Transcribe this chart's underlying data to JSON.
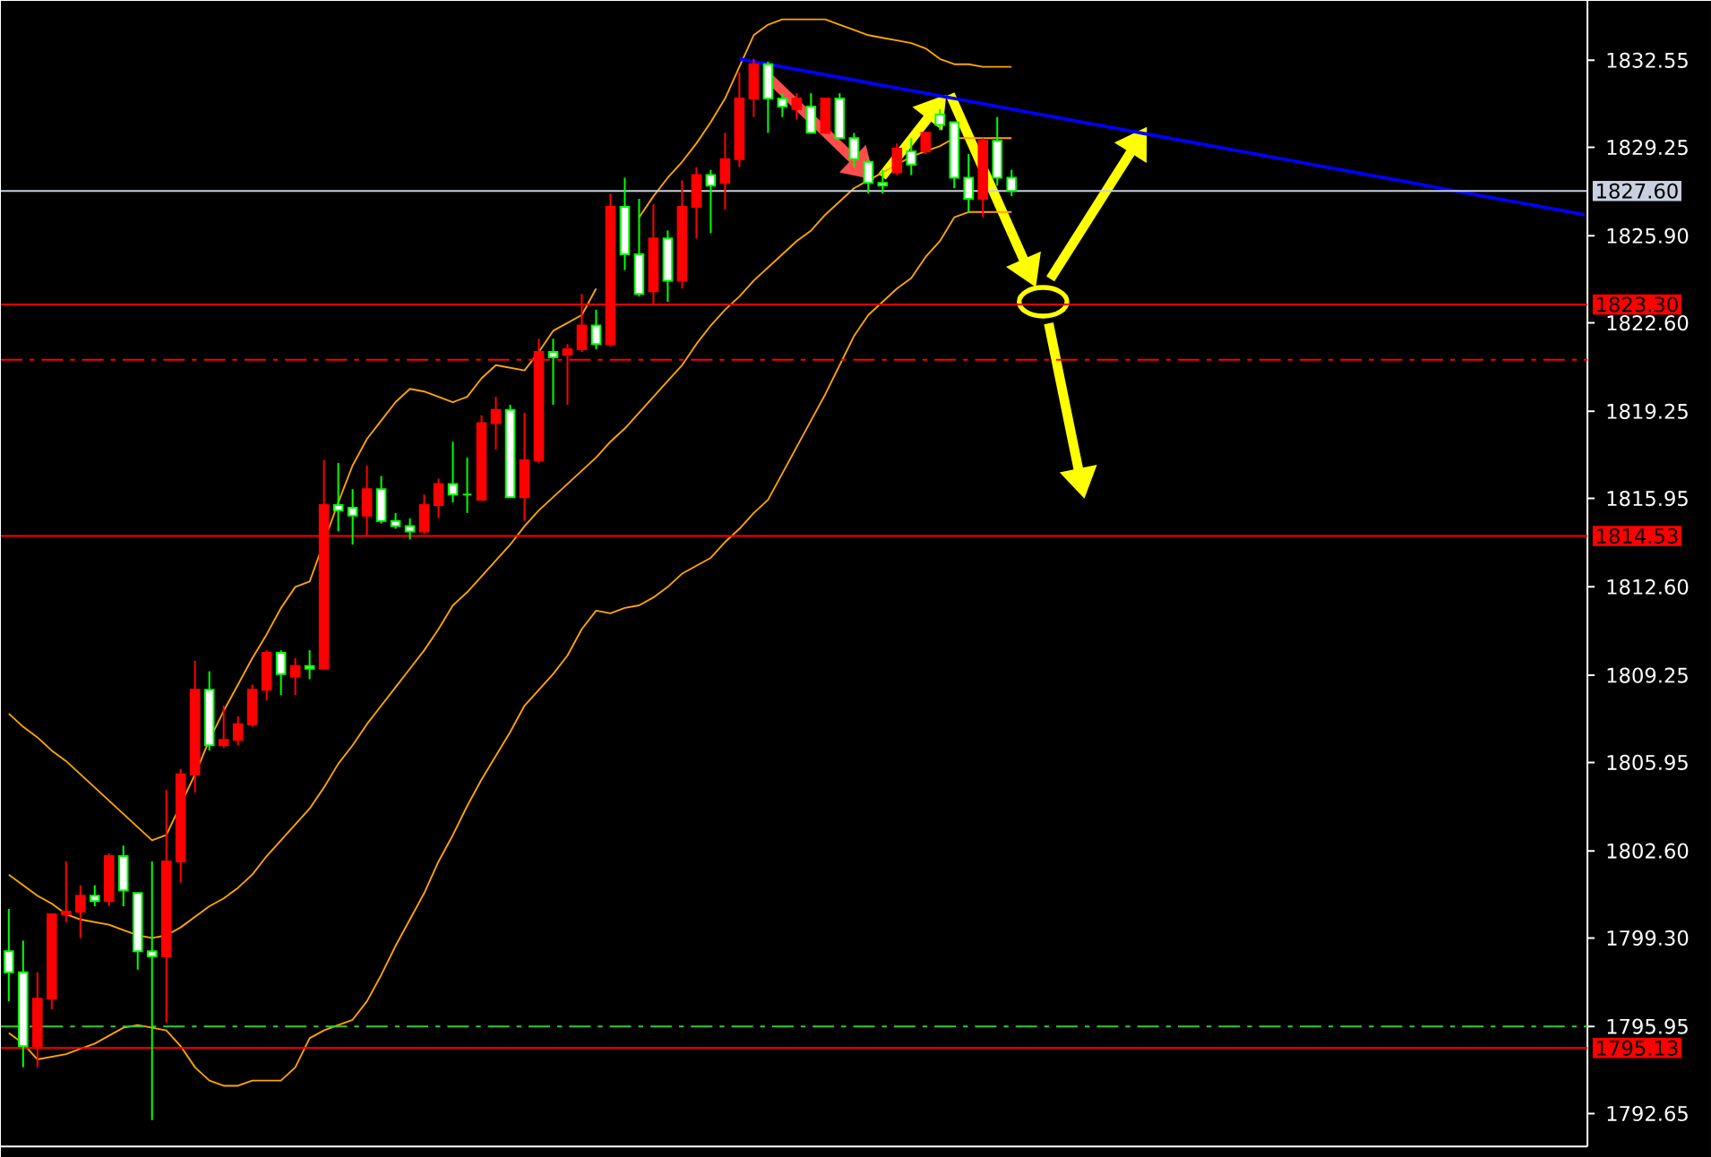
{
  "chart_data": {
    "type": "candlestick",
    "categories": [
      null,
      null,
      null,
      null,
      null,
      null,
      null,
      null,
      null,
      null,
      null,
      null,
      null,
      null,
      null,
      null,
      null,
      null,
      null,
      null,
      null,
      null,
      null,
      null,
      null,
      null,
      null,
      null,
      null,
      null,
      null,
      null,
      null,
      null,
      null,
      null,
      null,
      null,
      null,
      null,
      null,
      null,
      null,
      null,
      null,
      null,
      null,
      null,
      null,
      null,
      null,
      null,
      null,
      null,
      null,
      null,
      null,
      null,
      null,
      null,
      null,
      null,
      null,
      null,
      null,
      null,
      null,
      null,
      null,
      null,
      null,
      null,
      null,
      null,
      null,
      null,
      null,
      null,
      null,
      null,
      null,
      null,
      null,
      null,
      null,
      null,
      null,
      null,
      null,
      null,
      null,
      null,
      null,
      null,
      null,
      null,
      null,
      null,
      null,
      null,
      null,
      null,
      null,
      null,
      null,
      null,
      null,
      null,
      null,
      null,
      null
    ],
    "ohlc": [
      [
        1798.0,
        1800.4,
        1796.9,
        1798.8
      ],
      [
        1795.2,
        1799.2,
        1794.4,
        1798.0
      ],
      [
        1797.0,
        1798.0,
        1794.4,
        1795.2
      ],
      [
        1800.2,
        1800.2,
        1796.6,
        1797.0
      ],
      [
        1800.3,
        1802.2,
        1799.9,
        1800.2
      ],
      [
        1800.9,
        1801.3,
        1799.3,
        1800.3
      ],
      [
        1800.7,
        1801.3,
        1800.5,
        1800.9
      ],
      [
        1802.4,
        1802.5,
        1800.5,
        1800.7
      ],
      [
        1801.1,
        1802.8,
        1800.5,
        1802.4
      ],
      [
        1798.8,
        1801.0,
        1798.1,
        1801.0
      ],
      [
        1798.6,
        1802.2,
        1792.4,
        1798.8
      ],
      [
        1802.2,
        1804.9,
        1796.1,
        1798.6
      ],
      [
        1805.5,
        1805.7,
        1801.4,
        1802.2
      ],
      [
        1808.7,
        1809.8,
        1804.8,
        1805.5
      ],
      [
        1806.6,
        1809.4,
        1806.4,
        1808.7
      ],
      [
        1806.8,
        1808.1,
        1806.5,
        1806.6
      ],
      [
        1807.4,
        1807.7,
        1806.6,
        1806.8
      ],
      [
        1808.7,
        1808.9,
        1807.3,
        1807.4
      ],
      [
        1810.1,
        1810.2,
        1808.3,
        1808.7
      ],
      [
        1809.3,
        1810.2,
        1808.5,
        1810.1
      ],
      [
        1809.6,
        1809.9,
        1808.5,
        1809.2
      ],
      [
        1809.5,
        1810.2,
        1809.1,
        1809.6
      ],
      [
        1815.7,
        1817.4,
        1809.5,
        1809.5
      ],
      [
        1815.5,
        1817.3,
        1814.7,
        1815.7
      ],
      [
        1815.3,
        1816.3,
        1814.2,
        1815.6
      ],
      [
        1816.3,
        1817.2,
        1814.5,
        1815.3
      ],
      [
        1815.1,
        1816.8,
        1815.0,
        1816.3
      ],
      [
        1814.9,
        1815.4,
        1814.8,
        1815.1
      ],
      [
        1814.7,
        1815.2,
        1814.4,
        1814.9
      ],
      [
        1815.7,
        1816.1,
        1814.6,
        1814.7
      ],
      [
        1816.5,
        1816.7,
        1815.2,
        1815.7
      ],
      [
        1816.1,
        1818.1,
        1815.8,
        1816.5
      ],
      [
        1816.1,
        1817.5,
        1815.4,
        1816.1
      ],
      [
        1818.8,
        1819.1,
        1815.9,
        1815.9
      ],
      [
        1819.3,
        1819.8,
        1817.8,
        1818.8
      ],
      [
        1816.0,
        1819.5,
        1816.0,
        1819.3
      ],
      [
        1817.4,
        1819.2,
        1815.1,
        1816.0
      ],
      [
        1821.5,
        1822.0,
        1817.3,
        1817.4
      ],
      [
        1821.3,
        1822.0,
        1819.5,
        1821.5
      ],
      [
        1821.6,
        1821.8,
        1819.5,
        1821.4
      ],
      [
        1822.5,
        1823.7,
        1821.5,
        1821.6
      ],
      [
        1821.8,
        1823.1,
        1821.6,
        1822.5
      ],
      [
        1827.0,
        1827.5,
        1821.7,
        1821.8
      ],
      [
        1825.2,
        1828.1,
        1824.6,
        1827.0
      ],
      [
        1823.7,
        1827.3,
        1823.6,
        1825.2
      ],
      [
        1825.8,
        1827.1,
        1823.3,
        1823.8
      ],
      [
        1824.2,
        1826.1,
        1823.4,
        1825.8
      ],
      [
        1827.0,
        1828.0,
        1823.9,
        1824.2
      ],
      [
        1828.2,
        1828.5,
        1825.8,
        1827.0
      ],
      [
        1827.8,
        1828.4,
        1826.0,
        1828.2
      ],
      [
        1828.8,
        1829.8,
        1826.9,
        1827.9
      ],
      [
        1831.1,
        1832.1,
        1828.5,
        1828.8
      ],
      [
        1832.4,
        1832.6,
        1830.4,
        1831.1
      ],
      [
        1831.1,
        1832.5,
        1829.8,
        1832.4
      ],
      [
        1830.8,
        1831.3,
        1830.4,
        1831.1
      ],
      [
        1831.1,
        1831.3,
        1830.3,
        1830.7
      ],
      [
        1829.8,
        1831.3,
        1829.8,
        1830.8
      ],
      [
        1831.1,
        1831.1,
        1829.8,
        1829.8
      ],
      [
        1829.6,
        1831.3,
        1829.6,
        1831.1
      ],
      [
        1828.8,
        1829.8,
        1828.5,
        1829.6
      ],
      [
        1827.9,
        1828.8,
        1827.5,
        1828.7
      ],
      [
        1827.8,
        1828.4,
        1827.5,
        1827.9
      ],
      [
        1829.2,
        1829.4,
        1828.2,
        1828.3
      ],
      [
        1828.6,
        1829.6,
        1828.2,
        1829.1
      ],
      [
        1829.8,
        1829.8,
        1829.0,
        1829.1
      ],
      [
        1830.1,
        1830.7,
        1829.9,
        1830.5
      ],
      [
        1828.1,
        1830.2,
        1827.7,
        1830.2
      ],
      [
        1827.3,
        1829.0,
        1826.8,
        1828.1
      ],
      [
        1829.5,
        1829.6,
        1826.6,
        1827.3
      ],
      [
        1828.1,
        1830.4,
        1827.8,
        1829.5
      ],
      [
        1827.6,
        1828.4,
        1827.4,
        1828.1
      ],
      null,
      null,
      null,
      null,
      null,
      null,
      null,
      null,
      null,
      null,
      null,
      null,
      null,
      null,
      null,
      null,
      null,
      null,
      null,
      null,
      null,
      null,
      null,
      null,
      null,
      null,
      null,
      null,
      null,
      null,
      null,
      null,
      null,
      null,
      null,
      null,
      null,
      null,
      null,
      null
    ],
    "colors": [
      "#00ff00",
      "#00ff00",
      "#ff0000",
      "#ff0000",
      "#ff0000",
      "#ff0000",
      "#00ff00",
      "#ff0000",
      "#00ff00",
      "#00ff00",
      "#00ff00",
      "#ff0000",
      "#ff0000",
      "#ff0000",
      "#00ff00",
      "#ff0000",
      "#ff0000",
      "#ff0000",
      "#ff0000",
      "#00ff00",
      "#ff0000",
      "#00ff00",
      "#ff0000",
      "#00ff00",
      "#00ff00",
      "#ff0000",
      "#00ff00",
      "#00ff00",
      "#00ff00",
      "#ff0000",
      "#ff0000",
      "#00ff00",
      "#00ff00",
      "#ff0000",
      "#ff0000",
      "#00ff00",
      "#ff0000",
      "#ff0000",
      "#00ff00",
      "#ff0000",
      "#ff0000",
      "#00ff00",
      "#ff0000",
      "#00ff00",
      "#00ff00",
      "#ff0000",
      "#00ff00",
      "#ff0000",
      "#ff0000",
      "#00ff00",
      "#ff0000",
      "#ff0000",
      "#ff0000",
      "#00ff00",
      "#00ff00",
      "#ff0000",
      "#00ff00",
      "#ff0000",
      "#00ff00",
      "#00ff00",
      "#00ff00",
      "#00ff00",
      "#ff0000",
      "#00ff00",
      "#ff0000",
      "#00ff00",
      "#00ff00",
      "#00ff00",
      "#ff0000",
      "#00ff00",
      "#00ff00",
      null,
      null,
      null,
      null,
      null,
      null,
      null,
      null,
      null,
      null,
      null,
      null,
      null,
      null,
      null,
      null,
      null,
      null,
      null,
      null,
      null,
      null,
      null,
      null,
      null,
      null,
      null,
      null,
      null,
      null,
      null,
      null,
      null,
      null,
      null,
      null,
      null,
      null,
      null,
      null
    ],
    "ylim": [
      1791.4,
      1834.8
    ],
    "yticks": [
      1792.65,
      1795.95,
      {
        "value": 1799.3,
        "label": "1799.30"
      },
      {
        "value": 1802.6,
        "label": "1802.60"
      },
      1805.95,
      1809.25,
      {
        "value": 1812.6,
        "label": "1812.60"
      },
      1815.95,
      1819.25,
      {
        "value": 1822.6,
        "label": "1822.60"
      },
      {
        "value": 1825.9,
        "label": "1825.90"
      },
      1829.25,
      1832.55
    ],
    "tick_labels": "y",
    "ref_lines": [
      {
        "axis": "y",
        "value": 1827.6,
        "label": "1827.60",
        "color": "#c8d0e0"
      },
      {
        "axis": "y",
        "value": 1823.3,
        "label": "1823.30",
        "color": "#ff0000"
      },
      {
        "axis": "y",
        "value": 1821.2,
        "color": "#ff0000",
        "line_style": "dashed"
      },
      {
        "axis": "y",
        "value": 1814.53,
        "label": "1814.53",
        "color": "#ff0000"
      },
      {
        "axis": "y",
        "value": 1795.95,
        "color": "#33cc33",
        "line_style": "dashed"
      },
      {
        "axis": "y",
        "value": 1795.13,
        "label": "1795.13",
        "color": "#ff0000"
      }
    ],
    "series": [
      {
        "type": "line",
        "color": "#ffa500",
        "values": [
          1807.8,
          1807.3,
          1806.9,
          1806.4,
          1806.0,
          1805.5,
          1805.0,
          1804.5,
          1804.0,
          1803.5,
          1803.0,
          1803.2,
          null,
          1805.5,
          1806.8,
          1807.9,
          1808.9,
          1809.9,
          1810.8,
          1811.8,
          1812.6,
          1812.8,
          null,
          1815.8,
          1817.2,
          1818.2,
          1818.9,
          1819.6,
          1820.1,
          1820.0,
          1819.8,
          1819.6,
          1819.8,
          1820.5,
          1821.0,
          1820.9,
          1820.8,
          1821.5,
          1822.3,
          1822.6,
          1822.9,
          1823.9,
          null,
          null,
          1826.6,
          1827.4,
          1828.1,
          1828.7,
          1829.4,
          1830.2,
          1831.1,
          1832.3,
          1833.5,
          1833.9,
          1834.1,
          1834.1,
          1834.1,
          1834.1,
          1833.9,
          1833.7,
          1833.5,
          1833.4,
          1833.3,
          1833.2,
          1833.0,
          1832.6,
          1832.4,
          1832.4,
          1832.3,
          1832.3,
          1832.3,
          null,
          null,
          null,
          null,
          null,
          null,
          null,
          null,
          null,
          null,
          null,
          null,
          null,
          null,
          null,
          null,
          null,
          null,
          null,
          null,
          null,
          null,
          null,
          null,
          null,
          null,
          null,
          null,
          null,
          null,
          null,
          null,
          null,
          null,
          null,
          null,
          null,
          null,
          null,
          null
        ]
      },
      {
        "type": "line",
        "color": "#ffa500",
        "values": [
          1801.7,
          1801.3,
          1800.9,
          1800.6,
          1800.2,
          1800.0,
          1799.9,
          1799.8,
          1799.6,
          1799.4,
          1799.3,
          1799.4,
          1799.7,
          1800.1,
          1800.5,
          1800.8,
          1801.2,
          1801.7,
          1802.4,
          1803.0,
          1803.6,
          1804.2,
          1805.0,
          1805.9,
          1806.6,
          1807.4,
          1808.1,
          1808.8,
          1809.5,
          1810.2,
          1811.0,
          1811.9,
          1812.4,
          1813.0,
          1813.6,
          1814.2,
          1814.9,
          1815.5,
          1816.0,
          1816.5,
          1817.0,
          1817.5,
          1818.1,
          1818.6,
          1819.2,
          1819.8,
          1820.4,
          1821.0,
          1821.8,
          1822.5,
          1823.1,
          1823.6,
          1824.2,
          1824.7,
          1825.2,
          1825.7,
          1826.1,
          1826.7,
          1827.2,
          1827.7,
          1828.0,
          1828.3,
          1828.6,
          1828.9,
          1829.1,
          1829.3,
          1829.6,
          1829.6,
          1829.6,
          1829.6,
          1829.6,
          null,
          null,
          null,
          null,
          null,
          null,
          null,
          null,
          null,
          null,
          null,
          null,
          null,
          null,
          null,
          null,
          null,
          null,
          null,
          null,
          null,
          null,
          null,
          null,
          null,
          null,
          null,
          null,
          null,
          null,
          null,
          null,
          null,
          null,
          null,
          null,
          null,
          null,
          null,
          null
        ]
      },
      {
        "type": "line",
        "color": "#ffa500",
        "values": [
          1795.7,
          1795.3,
          1794.7,
          1794.8,
          1794.9,
          1795.1,
          1795.3,
          1795.6,
          1795.9,
          1796.0,
          1795.9,
          1795.8,
          1795.2,
          1794.4,
          1793.9,
          1793.7,
          1793.7,
          1793.9,
          1793.9,
          1793.9,
          1794.4,
          1795.5,
          1795.8,
          1796.0,
          1796.2,
          1796.9,
          1797.9,
          1799.0,
          1800.0,
          1801.0,
          1802.2,
          1803.2,
          1804.3,
          1805.3,
          1806.2,
          1807.1,
          1808.1,
          1808.7,
          1809.3,
          1810.0,
          1811.0,
          1811.7,
          1811.6,
          1811.8,
          1811.9,
          1812.2,
          1812.6,
          1813.1,
          1813.4,
          1813.7,
          1814.3,
          1814.8,
          1815.4,
          1815.9,
          1816.9,
          1817.9,
          1818.9,
          1819.9,
          1821.0,
          1822.1,
          1822.9,
          1823.4,
          1823.9,
          1824.3,
          1825.1,
          1825.7,
          1826.6,
          1826.8,
          1826.8,
          1826.8,
          1826.8,
          null,
          null,
          null,
          null,
          null,
          null,
          null,
          null,
          null,
          null,
          null,
          null,
          null,
          null,
          null,
          null,
          null,
          null,
          null,
          null,
          null,
          null,
          null,
          null,
          null,
          null,
          null,
          null,
          null,
          null,
          null,
          null,
          null,
          null,
          null,
          null,
          null,
          null,
          null,
          null
        ]
      },
      {
        "type": "line",
        "color": "#0000ff",
        "values": [
          null,
          null,
          null,
          null,
          null,
          null,
          null,
          null,
          null,
          null,
          null,
          null,
          null,
          null,
          null,
          null,
          null,
          null,
          null,
          null,
          null,
          null,
          null,
          null,
          null,
          null,
          null,
          null,
          null,
          null,
          null,
          null,
          null,
          null,
          null,
          null,
          null,
          null,
          null,
          null,
          null,
          null,
          null,
          null,
          null,
          null,
          null,
          null,
          null,
          null,
          null,
          1832.6,
          1832.5,
          1832.4,
          1832.3,
          1832.2,
          1832.1,
          1832.0,
          1831.9,
          1831.8,
          1831.7,
          1831.6,
          1831.5,
          1831.4,
          1831.3,
          1831.2,
          1831.1,
          1831.0,
          1830.9,
          1830.8,
          1830.7,
          1830.6,
          1830.5,
          1830.4,
          1830.3,
          1830.2,
          1830.1,
          1830.0,
          1829.9,
          1829.8,
          1829.7,
          1829.6,
          1829.5,
          1829.4,
          1829.3,
          1829.2,
          1829.1,
          1829.0,
          1828.9,
          1828.8,
          1828.7,
          1828.6,
          1828.5,
          1828.4,
          1828.3,
          1828.2,
          1828.1,
          1828.0,
          1827.9,
          1827.8,
          1827.7,
          1827.6,
          1827.5,
          1827.4,
          1827.3,
          1827.2,
          1827.1,
          1827.0,
          1826.9,
          1826.8,
          1826.7
        ]
      }
    ]
  }
}
